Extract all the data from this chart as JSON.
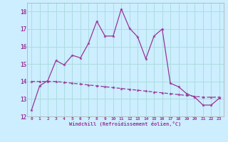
{
  "xlabel": "Windchill (Refroidissement éolien,°C)",
  "background_color": "#cceeff",
  "grid_color": "#aadddd",
  "line_color": "#993399",
  "xlim": [
    -0.5,
    23.5
  ],
  "ylim": [
    12.0,
    18.5
  ],
  "yticks": [
    12,
    13,
    14,
    15,
    16,
    17,
    18
  ],
  "xticks": [
    0,
    1,
    2,
    3,
    4,
    5,
    6,
    7,
    8,
    9,
    10,
    11,
    12,
    13,
    14,
    15,
    16,
    17,
    18,
    19,
    20,
    21,
    22,
    23
  ],
  "series1_x": [
    0,
    1,
    2,
    3,
    4,
    5,
    6,
    7,
    8,
    9,
    10,
    11,
    12,
    13,
    14,
    15,
    16,
    17,
    18,
    19,
    20,
    21,
    22,
    23
  ],
  "series1_y": [
    12.35,
    13.75,
    14.05,
    15.2,
    14.95,
    15.5,
    15.35,
    16.2,
    17.45,
    16.6,
    16.6,
    18.15,
    17.05,
    16.55,
    15.3,
    16.6,
    17.0,
    13.9,
    13.7,
    13.3,
    13.1,
    12.65,
    12.65,
    13.05
  ],
  "series2_x": [
    0,
    1,
    2,
    3,
    4,
    5,
    6,
    7,
    8,
    9,
    10,
    11,
    12,
    13,
    14,
    15,
    16,
    17,
    18,
    19,
    20,
    21,
    22,
    23
  ],
  "series2_y": [
    14.0,
    14.0,
    14.0,
    14.0,
    13.95,
    13.9,
    13.85,
    13.8,
    13.75,
    13.7,
    13.65,
    13.6,
    13.55,
    13.5,
    13.45,
    13.4,
    13.35,
    13.3,
    13.25,
    13.2,
    13.15,
    13.1,
    13.1,
    13.1
  ]
}
